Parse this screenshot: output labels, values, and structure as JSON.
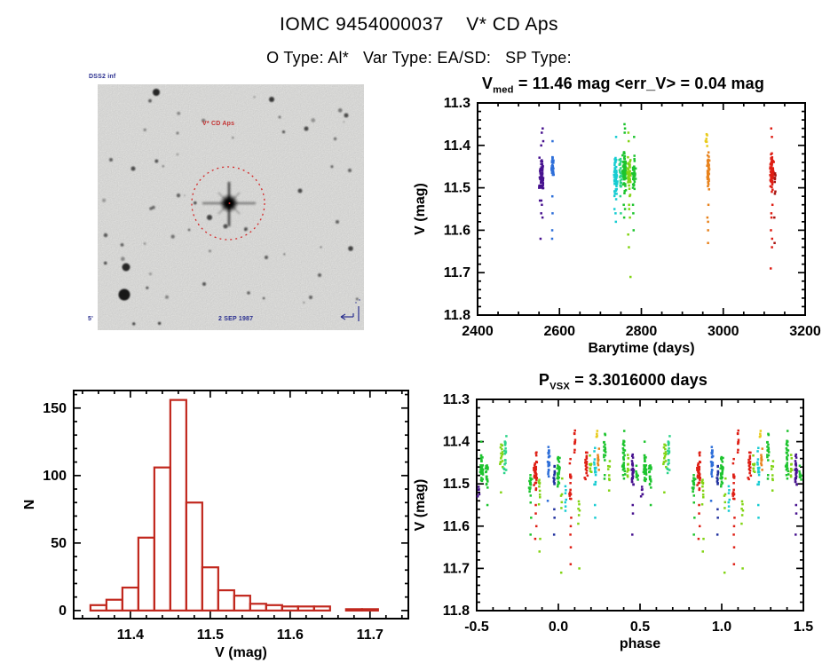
{
  "header": {
    "title": "IOMC 9454000037    V* CD Aps",
    "subtitle": "O Type: Al*   Var Type: EA/SD:   SP Type:"
  },
  "finding_chart": {
    "survey_label": "DSS2 inf",
    "target_label": "V* CD Aps",
    "epoch_label": "2 SEP 1987",
    "scale_label": "5'",
    "annotation_color": "#2a2f8f",
    "target_label_color": "#c43434",
    "circle_color": "#d42a2a"
  },
  "palette": {
    "purple": "#47128f",
    "blue": "#2e6fd9",
    "darkblue": "#20309e",
    "cyan": "#17ccd2",
    "teal": "#2bd489",
    "green": "#1dc42e",
    "lightgreen": "#82d414",
    "yellow": "#e9cb1b",
    "orange": "#e8821c",
    "red": "#de1e14",
    "darkred": "#a81410",
    "axis": "#000000"
  },
  "chart_data": [
    {
      "id": "barytime",
      "type": "scatter",
      "title_pre": "V",
      "title_sub": "med",
      "title_post": " = 11.46 mag <err_V> = 0.04 mag",
      "xlabel": "Barytime (days)",
      "ylabel": "V (mag)",
      "xlim": [
        2400,
        3200
      ],
      "ylim_top": 11.3,
      "ylim_bottom": 11.8,
      "xticks": [
        "2400",
        "2600",
        "2800",
        "3000",
        "3200"
      ],
      "yticks": [
        "11.3",
        "11.4",
        "11.5",
        "11.6",
        "11.7",
        "11.8"
      ],
      "x_minor": 50,
      "y_minor": 0.02,
      "clusters": [
        {
          "x": 2556,
          "xs": 6,
          "c": "purple",
          "n": 60,
          "v": [
            11.42,
            11.51
          ],
          "out": [
            11.36,
            11.37,
            11.39,
            11.4,
            11.53,
            11.53,
            11.54,
            11.56,
            11.57,
            11.62
          ]
        },
        {
          "x": 2583,
          "xs": 4,
          "c": "blue",
          "n": 30,
          "v": [
            11.41,
            11.49
          ],
          "out": [
            11.39,
            11.44,
            11.52,
            11.56,
            11.6,
            11.62
          ]
        },
        {
          "x": 2737,
          "xs": 5,
          "c": "cyan",
          "n": 55,
          "v": [
            11.41,
            11.53
          ],
          "out": [
            11.38,
            11.55,
            11.56,
            11.58
          ]
        },
        {
          "x": 2748,
          "xs": 4,
          "c": "teal",
          "n": 25,
          "v": [
            11.43,
            11.53
          ],
          "out": [
            11.56
          ]
        },
        {
          "x": 2758,
          "xs": 5,
          "c": "green",
          "n": 70,
          "v": [
            11.4,
            11.52
          ],
          "out": [
            11.35,
            11.36,
            11.37,
            11.54,
            11.55,
            11.57
          ]
        },
        {
          "x": 2770,
          "xs": 5,
          "c": "lightgreen",
          "n": 50,
          "v": [
            11.42,
            11.53
          ],
          "out": [
            11.37,
            11.39,
            11.54,
            11.55,
            11.57,
            11.61,
            11.64,
            11.71
          ]
        },
        {
          "x": 2782,
          "xs": 5,
          "c": "green",
          "n": 35,
          "v": [
            11.42,
            11.52
          ],
          "out": [
            11.38,
            11.54,
            11.56,
            11.6
          ]
        },
        {
          "x": 2959,
          "xs": 3,
          "c": "yellow",
          "n": 7,
          "v": [
            11.37,
            11.41
          ],
          "out": []
        },
        {
          "x": 2963,
          "xs": 4,
          "c": "orange",
          "n": 48,
          "v": [
            11.41,
            11.52
          ],
          "out": [
            11.54,
            11.57,
            11.58,
            11.6,
            11.63
          ]
        },
        {
          "x": 3119,
          "xs": 5,
          "c": "red",
          "n": 65,
          "v": [
            11.41,
            11.52
          ],
          "out": [
            11.36,
            11.38,
            11.54,
            11.56,
            11.57,
            11.6,
            11.62,
            11.64,
            11.69
          ]
        },
        {
          "x": 3126,
          "xs": 3,
          "c": "darkred",
          "n": 8,
          "v": [
            11.44,
            11.52
          ],
          "out": [
            11.57,
            11.63
          ]
        }
      ]
    },
    {
      "id": "vhist",
      "type": "bar",
      "xlabel": "V (mag)",
      "ylabel": "N",
      "bin_start": 11.35,
      "bin_width": 0.02,
      "values": [
        4,
        8,
        17,
        54,
        106,
        156,
        80,
        32,
        15,
        11,
        5,
        4,
        3,
        3,
        3,
        0,
        1,
        1
      ],
      "xticks": [
        "11.4",
        "11.5",
        "11.6",
        "11.7"
      ],
      "yticks": [
        "0",
        "50",
        "100",
        "150"
      ],
      "xlim": [
        11.329,
        11.748
      ],
      "ylim": [
        -6,
        163
      ],
      "x_minor": 0.02,
      "y_minor": 10,
      "color": "#c1271d"
    },
    {
      "id": "phase",
      "type": "scatter",
      "title_pre": "P",
      "title_sub": "VSX",
      "title_post": " = 3.3016000 days",
      "xlabel": "phase",
      "ylabel": "V (mag)",
      "xlim": [
        -0.5,
        1.5
      ],
      "ylim_top": 11.3,
      "ylim_bottom": 11.8,
      "xticks": [
        "-0.5",
        "0.0",
        "0.5",
        "1.0",
        "1.5"
      ],
      "yticks": [
        "11.3",
        "11.4",
        "11.5",
        "11.6",
        "11.7",
        "11.8"
      ],
      "x_minor": 0.1,
      "y_minor": 0.02,
      "duplicate_period": 1.0,
      "clusters": [
        {
          "x": -0.49,
          "xs": 0.01,
          "c": "purple",
          "n": 6,
          "v": [
            11.5,
            11.55
          ],
          "out": []
        },
        {
          "x": -0.47,
          "xs": 0.012,
          "c": "green",
          "n": 30,
          "v": [
            11.42,
            11.5
          ],
          "out": [
            11.4
          ]
        },
        {
          "x": -0.44,
          "xs": 0.01,
          "c": "green",
          "n": 18,
          "v": [
            11.44,
            11.52
          ],
          "out": [
            11.55
          ]
        },
        {
          "x": -0.35,
          "xs": 0.01,
          "c": "lightgreen",
          "n": 14,
          "v": [
            11.4,
            11.48
          ],
          "out": [
            11.52
          ]
        },
        {
          "x": -0.325,
          "xs": 0.01,
          "c": "teal",
          "n": 20,
          "v": [
            11.38,
            11.5
          ],
          "out": []
        },
        {
          "x": -0.17,
          "xs": 0.01,
          "c": "green",
          "n": 18,
          "v": [
            11.45,
            11.55
          ],
          "out": [
            11.58,
            11.62
          ]
        },
        {
          "x": -0.14,
          "xs": 0.012,
          "c": "red",
          "n": 38,
          "v": [
            11.42,
            11.53
          ],
          "out": [
            11.55,
            11.57,
            11.6,
            11.63
          ]
        },
        {
          "x": -0.115,
          "xs": 0.008,
          "c": "lightgreen",
          "n": 10,
          "v": [
            11.46,
            11.56
          ],
          "out": [
            11.63,
            11.66
          ]
        },
        {
          "x": -0.06,
          "xs": 0.008,
          "c": "blue",
          "n": 22,
          "v": [
            11.4,
            11.5
          ],
          "out": [
            11.54
          ]
        },
        {
          "x": -0.025,
          "xs": 0.006,
          "c": "darkblue",
          "n": 12,
          "v": [
            11.42,
            11.52
          ],
          "out": [
            11.56,
            11.58,
            11.62
          ]
        },
        {
          "x": 0.0,
          "xs": 0.01,
          "c": "green",
          "n": 28,
          "v": [
            11.42,
            11.52
          ],
          "out": []
        },
        {
          "x": 0.02,
          "xs": 0.006,
          "c": "lightgreen",
          "n": 5,
          "v": [
            11.48,
            11.56
          ],
          "out": [
            11.71
          ]
        },
        {
          "x": 0.045,
          "xs": 0.006,
          "c": "cyan",
          "n": 7,
          "v": [
            11.48,
            11.58
          ],
          "out": []
        },
        {
          "x": 0.075,
          "xs": 0.008,
          "c": "red",
          "n": 16,
          "v": [
            11.44,
            11.56
          ],
          "out": [
            11.58,
            11.6,
            11.62,
            11.65,
            11.69
          ]
        },
        {
          "x": 0.1,
          "xs": 0.007,
          "c": "red",
          "n": 9,
          "v": [
            11.36,
            11.45
          ],
          "out": []
        },
        {
          "x": 0.125,
          "xs": 0.006,
          "c": "lightgreen",
          "n": 6,
          "v": [
            11.5,
            11.6
          ],
          "out": [
            11.7
          ]
        },
        {
          "x": 0.17,
          "xs": 0.01,
          "c": "red",
          "n": 20,
          "v": [
            11.42,
            11.5
          ],
          "out": []
        },
        {
          "x": 0.195,
          "xs": 0.008,
          "c": "lightgreen",
          "n": 9,
          "v": [
            11.42,
            11.52
          ],
          "out": []
        },
        {
          "x": 0.225,
          "xs": 0.008,
          "c": "cyan",
          "n": 18,
          "v": [
            11.4,
            11.52
          ],
          "out": [
            11.55,
            11.58
          ]
        },
        {
          "x": 0.235,
          "xs": 0.004,
          "c": "yellow",
          "n": 4,
          "v": [
            11.37,
            11.4
          ],
          "out": []
        },
        {
          "x": 0.245,
          "xs": 0.006,
          "c": "orange",
          "n": 11,
          "v": [
            11.4,
            11.48
          ],
          "out": []
        },
        {
          "x": 0.285,
          "xs": 0.01,
          "c": "green",
          "n": 18,
          "v": [
            11.36,
            11.5
          ],
          "out": []
        },
        {
          "x": 0.31,
          "xs": 0.007,
          "c": "lightgreen",
          "n": 8,
          "v": [
            11.42,
            11.52
          ],
          "out": []
        },
        {
          "x": 0.4,
          "xs": 0.012,
          "c": "green",
          "n": 30,
          "v": [
            11.36,
            11.5
          ],
          "out": []
        },
        {
          "x": 0.425,
          "xs": 0.008,
          "c": "lightgreen",
          "n": 10,
          "v": [
            11.42,
            11.5
          ],
          "out": []
        },
        {
          "x": 0.455,
          "xs": 0.008,
          "c": "purple",
          "n": 26,
          "v": [
            11.42,
            11.52
          ],
          "out": [
            11.55,
            11.57,
            11.62
          ]
        },
        {
          "x": 0.48,
          "xs": 0.008,
          "c": "green",
          "n": 9,
          "v": [
            11.44,
            11.52
          ],
          "out": []
        }
      ]
    }
  ]
}
